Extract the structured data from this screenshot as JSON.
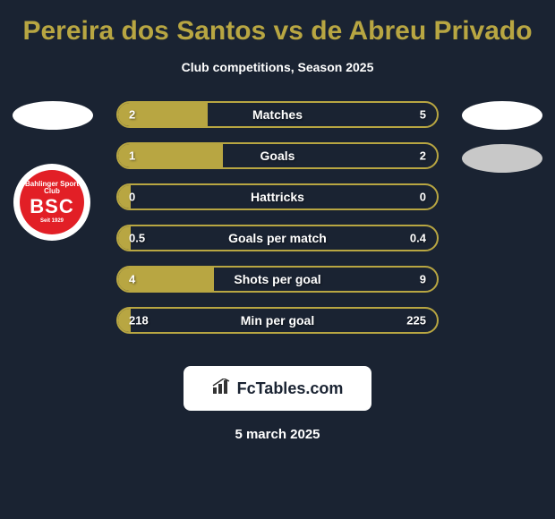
{
  "title": "Pereira dos Santos vs de Abreu Privado",
  "subtitle": "Club competitions, Season 2025",
  "colors": {
    "background": "#1a2332",
    "accent": "#b8a642",
    "text": "#ffffff",
    "badge_bg": "#ffffff",
    "badge_text": "#1a2332",
    "club_red": "#e21f26"
  },
  "club": {
    "top_text": "Bahlinger Sport Club",
    "main": "BSC",
    "sub": "Seit 1929"
  },
  "stats": [
    {
      "label": "Matches",
      "left_value": "2",
      "right_value": "5",
      "left_pct": 28,
      "right_pct": 0
    },
    {
      "label": "Goals",
      "left_value": "1",
      "right_value": "2",
      "left_pct": 33,
      "right_pct": 0
    },
    {
      "label": "Hattricks",
      "left_value": "0",
      "right_value": "0",
      "left_pct": 4,
      "right_pct": 0
    },
    {
      "label": "Goals per match",
      "left_value": "0.5",
      "right_value": "0.4",
      "left_pct": 4,
      "right_pct": 0
    },
    {
      "label": "Shots per goal",
      "left_value": "4",
      "right_value": "9",
      "left_pct": 30,
      "right_pct": 0
    },
    {
      "label": "Min per goal",
      "left_value": "218",
      "right_value": "225",
      "left_pct": 4,
      "right_pct": 0
    }
  ],
  "footer": {
    "site": "FcTables.com"
  },
  "date": "5 march 2025"
}
